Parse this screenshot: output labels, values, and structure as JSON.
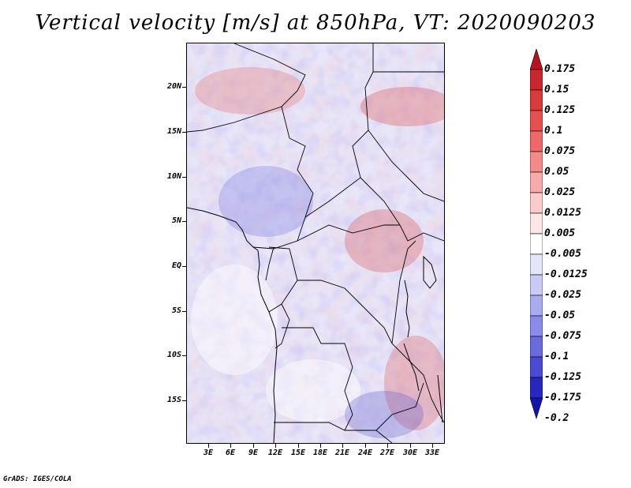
{
  "title": "Vertical velocity [m/s] at 850hPa, VT: 2020090203",
  "footer": "GrADS: IGES/COLA",
  "map": {
    "variable": "Vertical velocity",
    "units": "m/s",
    "level": "850hPa",
    "valid_time": "2020090203",
    "lat_labels": [
      "20N",
      "15N",
      "10N",
      "5N",
      "EQ",
      "5S",
      "10S",
      "15S"
    ],
    "lon_labels": [
      "3E",
      "6E",
      "9E",
      "12E",
      "15E",
      "18E",
      "21E",
      "24E",
      "27E",
      "30E",
      "33E"
    ]
  },
  "colorbar": {
    "labels": [
      "0.175",
      "0.15",
      "0.125",
      "0.1",
      "0.075",
      "0.05",
      "0.025",
      "0.0125",
      "0.005",
      "-0.005",
      "-0.0125",
      "-0.025",
      "-0.05",
      "-0.075",
      "-0.1",
      "-0.125",
      "-0.175",
      "-0.2"
    ],
    "colors": [
      "#b4141e",
      "#c8282d",
      "#d73c3c",
      "#e55050",
      "#ee6a6a",
      "#f38a8a",
      "#f7aaaa",
      "#fbcaca",
      "#fde6e6",
      "#ffffff",
      "#e6e6fb",
      "#cacaf5",
      "#aaaaf0",
      "#8a8ae8",
      "#6a6add",
      "#4a4ad2",
      "#2828be",
      "#1414a8"
    ]
  }
}
